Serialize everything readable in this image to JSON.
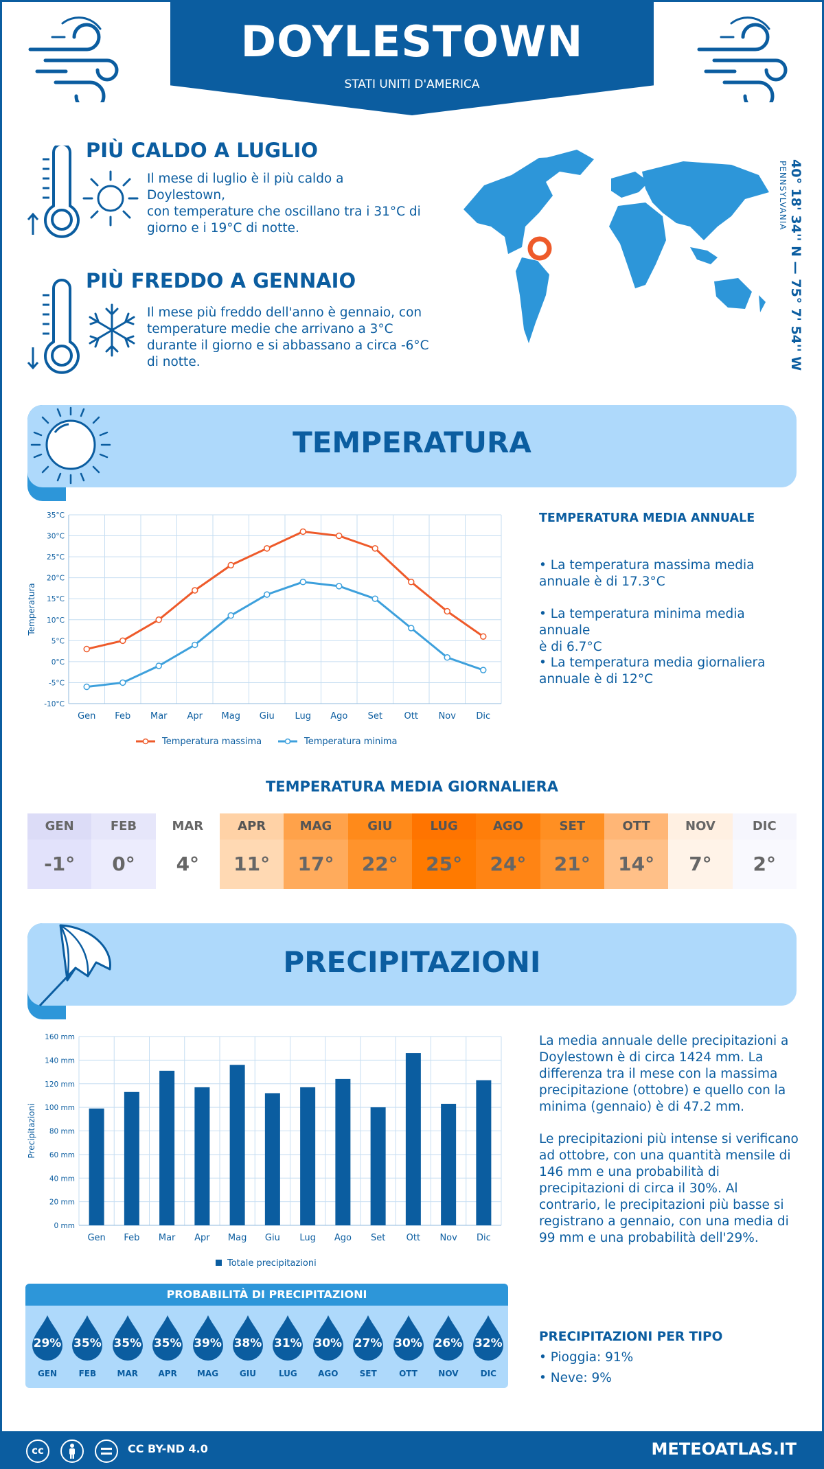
{
  "header": {
    "city": "DOYLESTOWN",
    "country": "STATI UNITI D'AMERICA"
  },
  "coords": {
    "text": "40° 18' 34'' N — 75° 7' 54'' W",
    "state": "PENNSYLVANIA"
  },
  "hot": {
    "title": "PIÙ CALDO A LUGLIO",
    "lines": [
      "Il mese di luglio è il più caldo a Doylestown,",
      "con temperature che oscillano tra i 31°C di",
      "giorno e i 19°C di notte."
    ]
  },
  "cold": {
    "title": "PIÙ FREDDO A GENNAIO",
    "lines": [
      "Il mese più freddo dell'anno è gennaio, con",
      "temperature medie che arrivano a 3°C",
      "durante il giorno e si abbassano a circa -6°C",
      "di notte."
    ]
  },
  "temperature_section": {
    "title": "TEMPERATURA"
  },
  "temp_summary": {
    "title": "TEMPERATURA MEDIA ANNUALE",
    "max": [
      "• La temperatura massima media",
      "annuale è di 17.3°C"
    ],
    "min": [
      "• La temperatura minima media annuale",
      "è di 6.7°C"
    ],
    "avg": [
      "• La temperatura media giornaliera",
      "annuale è di 12°C"
    ]
  },
  "daily": {
    "title": "TEMPERATURA MEDIA GIORNALIERA",
    "months": [
      "GEN",
      "FEB",
      "MAR",
      "APR",
      "MAG",
      "GIU",
      "LUG",
      "AGO",
      "SET",
      "OTT",
      "NOV",
      "DIC"
    ],
    "values": [
      "-1°",
      "0°",
      "4°",
      "11°",
      "17°",
      "22°",
      "25°",
      "24°",
      "21°",
      "14°",
      "7°",
      "2°"
    ],
    "colors_top": [
      "#dcdcf7",
      "#e6e6fa",
      "#ffffff",
      "#ffd2a6",
      "#ffa24a",
      "#ff8a1a",
      "#ff7400",
      "#ff7e0a",
      "#ff8f22",
      "#ffb676",
      "#fff0e2",
      "#f6f6fd"
    ],
    "colors_bottom": [
      "#e2e2fb",
      "#ececfd",
      "#ffffff",
      "#ffd9b3",
      "#ffab5c",
      "#ff932c",
      "#ff7a00",
      "#ff8414",
      "#ff9632",
      "#ffc088",
      "#fff3e8",
      "#f9f9fe"
    ]
  },
  "precip_section": {
    "title": "PRECIPITAZIONI"
  },
  "precip_text": {
    "p1": [
      "La media annuale delle precipitazioni a",
      "Doylestown è di circa 1424 mm. La",
      "differenza tra il mese con la massima",
      "precipitazione (ottobre) e quello con la",
      "minima (gennaio) è di 47.2 mm."
    ],
    "p2": [
      "Le precipitazioni più intense si verificano",
      "ad ottobre, con una quantità mensile di",
      "146 mm e una probabilità di",
      "precipitazioni di circa il 30%. Al",
      "contrario, le precipitazioni più basse si",
      "registrano a gennaio, con una media di",
      "99 mm e una probabilità dell'29%."
    ]
  },
  "prob": {
    "title": "PROBABILITÀ DI PRECIPITAZIONI",
    "values": [
      "29%",
      "35%",
      "35%",
      "35%",
      "39%",
      "38%",
      "31%",
      "30%",
      "27%",
      "30%",
      "26%",
      "32%"
    ],
    "months": [
      "GEN",
      "FEB",
      "MAR",
      "APR",
      "MAG",
      "GIU",
      "LUG",
      "AGO",
      "SET",
      "OTT",
      "NOV",
      "DIC"
    ]
  },
  "ptype": {
    "title": "PRECIPITAZIONI PER TIPO",
    "rain": "• Pioggia: 91%",
    "snow": "• Neve: 9%"
  },
  "footer": {
    "license": "CC BY-ND 4.0",
    "site": "METEOATLAS.IT"
  },
  "colors": {
    "primary": "#0b5da0",
    "light": "#aed9fb",
    "mid": "#2d96d9",
    "max_line": "#ee5a2a",
    "min_line": "#3da0dc",
    "bar": "#0b5da0"
  },
  "chart_data": [
    {
      "type": "line",
      "categories": [
        "Gen",
        "Feb",
        "Mar",
        "Apr",
        "Mag",
        "Giu",
        "Lug",
        "Ago",
        "Set",
        "Ott",
        "Nov",
        "Dic"
      ],
      "series": [
        {
          "name": "Temperatura massima",
          "values": [
            3,
            5,
            10,
            17,
            23,
            27,
            31,
            30,
            27,
            19,
            12,
            6
          ]
        },
        {
          "name": "Temperatura minima",
          "values": [
            -6,
            -5,
            -1,
            4,
            11,
            16,
            19,
            18,
            15,
            8,
            1,
            -2
          ]
        }
      ],
      "ylabel": "Temperatura",
      "ylim": [
        -10,
        35
      ],
      "yticks": [
        "-10°C",
        "-5°C",
        "0°C",
        "5°C",
        "10°C",
        "15°C",
        "20°C",
        "25°C",
        "30°C",
        "35°C"
      ],
      "grid": true,
      "legend": "bottom"
    },
    {
      "type": "bar",
      "categories": [
        "Gen",
        "Feb",
        "Mar",
        "Apr",
        "Mag",
        "Giu",
        "Lug",
        "Ago",
        "Set",
        "Ott",
        "Nov",
        "Dic"
      ],
      "series": [
        {
          "name": "Totale precipitazioni",
          "values": [
            99,
            113,
            131,
            117,
            136,
            112,
            117,
            124,
            100,
            146,
            103,
            123
          ]
        }
      ],
      "ylabel": "Precipitazioni",
      "ylim": [
        0,
        160
      ],
      "yticks": [
        "0 mm",
        "20 mm",
        "40 mm",
        "60 mm",
        "80 mm",
        "100 mm",
        "120 mm",
        "140 mm",
        "160 mm"
      ],
      "grid": true,
      "legend": "bottom"
    }
  ]
}
